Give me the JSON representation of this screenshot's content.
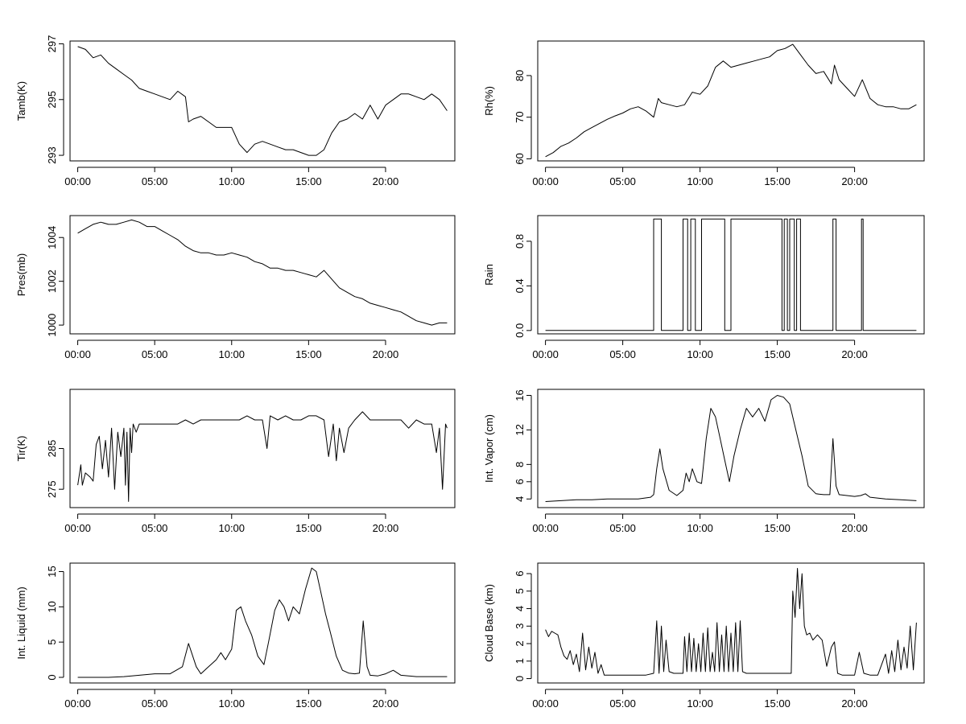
{
  "x_tick_labels": [
    "00:00",
    "05:00",
    "10:00",
    "15:00",
    "20:00"
  ],
  "chart_data": [
    {
      "type": "line",
      "ylabel": "Tamb(K)",
      "x_unit": "hours",
      "ylim": [
        292.8,
        297.1
      ],
      "yticks": [
        293,
        295,
        297
      ],
      "ytick_labels": [
        "293",
        "295",
        "297"
      ],
      "series": [
        {
          "x": [
            0,
            0.5,
            1,
            1.5,
            2,
            2.5,
            3,
            3.5,
            4,
            4.5,
            5,
            5.5,
            6,
            6.5,
            7,
            7.2,
            7.5,
            8,
            8.5,
            9,
            9.5,
            10,
            10.5,
            11,
            11.5,
            12,
            12.5,
            13,
            13.5,
            14,
            14.5,
            15,
            15.5,
            16,
            16.5,
            17,
            17.5,
            18,
            18.5,
            19,
            19.5,
            20,
            20.5,
            21,
            21.5,
            22,
            22.5,
            23,
            23.5,
            24
          ],
          "values": [
            296.9,
            296.8,
            296.5,
            296.6,
            296.3,
            296.1,
            295.9,
            295.7,
            295.4,
            295.3,
            295.2,
            295.1,
            295.0,
            295.3,
            295.1,
            294.2,
            294.3,
            294.4,
            294.2,
            294.0,
            294.0,
            294.0,
            293.4,
            293.1,
            293.4,
            293.5,
            293.4,
            293.3,
            293.2,
            293.2,
            293.1,
            293.0,
            293.0,
            293.2,
            293.8,
            294.2,
            294.3,
            294.5,
            294.3,
            294.8,
            294.3,
            294.8,
            295.0,
            295.2,
            295.2,
            295.1,
            295.0,
            295.2,
            295.0,
            294.6
          ]
        }
      ]
    },
    {
      "type": "line",
      "ylabel": "Rh(%)",
      "x_unit": "hours",
      "ylim": [
        59.5,
        88.3
      ],
      "yticks": [
        60,
        70,
        80
      ],
      "ytick_labels": [
        "60",
        "70",
        "80"
      ],
      "series": [
        {
          "x": [
            0,
            0.5,
            1,
            1.5,
            2,
            2.5,
            3,
            3.5,
            4,
            4.5,
            5,
            5.5,
            6,
            6.5,
            7,
            7.3,
            7.5,
            8,
            8.5,
            9,
            9.5,
            10,
            10.5,
            11,
            11.5,
            12,
            12.5,
            13,
            13.5,
            14,
            14.5,
            15,
            15.5,
            16,
            16.5,
            17,
            17.5,
            18,
            18.5,
            18.7,
            19,
            19.5,
            20,
            20.5,
            21,
            21.5,
            22,
            22.5,
            23,
            23.5,
            24
          ],
          "values": [
            60.5,
            61.5,
            63.0,
            63.8,
            65.0,
            66.5,
            67.5,
            68.5,
            69.5,
            70.3,
            71.0,
            72.0,
            72.5,
            71.5,
            70.0,
            74.5,
            73.5,
            73.0,
            72.5,
            73.0,
            76.0,
            75.5,
            77.5,
            82.0,
            83.5,
            82.0,
            82.5,
            83.0,
            83.5,
            84.0,
            84.5,
            86.0,
            86.5,
            87.5,
            85.0,
            82.5,
            80.5,
            81.0,
            78.0,
            82.5,
            79.0,
            77.0,
            75.0,
            79.0,
            74.5,
            73.0,
            72.5,
            72.5,
            72.0,
            72.0,
            73.0
          ]
        }
      ]
    },
    {
      "type": "line",
      "ylabel": "Pres(mb)",
      "x_unit": "hours",
      "ylim": [
        999.6,
        1005.0
      ],
      "yticks": [
        1000,
        1002,
        1004
      ],
      "ytick_labels": [
        "1000",
        "1002",
        "1004"
      ],
      "series": [
        {
          "x": [
            0,
            0.5,
            1,
            1.5,
            2,
            2.5,
            3,
            3.5,
            4,
            4.5,
            5,
            5.5,
            6,
            6.5,
            7,
            7.5,
            8,
            8.5,
            9,
            9.5,
            10,
            10.5,
            11,
            11.5,
            12,
            12.5,
            13,
            13.5,
            14,
            14.5,
            15,
            15.5,
            16,
            16.5,
            17,
            17.5,
            18,
            18.5,
            19,
            19.5,
            20,
            20.5,
            21,
            21.5,
            22,
            22.5,
            23,
            23.5,
            24
          ],
          "values": [
            1004.2,
            1004.4,
            1004.6,
            1004.7,
            1004.6,
            1004.6,
            1004.7,
            1004.8,
            1004.7,
            1004.5,
            1004.5,
            1004.3,
            1004.1,
            1003.9,
            1003.6,
            1003.4,
            1003.3,
            1003.3,
            1003.2,
            1003.2,
            1003.3,
            1003.2,
            1003.1,
            1002.9,
            1002.8,
            1002.6,
            1002.6,
            1002.5,
            1002.5,
            1002.4,
            1002.3,
            1002.2,
            1002.5,
            1002.1,
            1001.7,
            1001.5,
            1001.3,
            1001.2,
            1001.0,
            1000.9,
            1000.8,
            1000.7,
            1000.6,
            1000.4,
            1000.2,
            1000.1,
            1000.0,
            1000.1,
            1000.1
          ]
        }
      ]
    },
    {
      "type": "line",
      "ylabel": "Rain",
      "x_unit": "hours",
      "ylim": [
        -0.03,
        1.03
      ],
      "yticks": [
        0.0,
        0.4,
        0.8
      ],
      "ytick_labels": [
        "0.0",
        "0.4",
        "0.8"
      ],
      "series": [
        {
          "x": [
            0,
            7.0,
            7.0,
            7.5,
            7.5,
            8.9,
            8.9,
            9.2,
            9.2,
            9.4,
            9.4,
            9.7,
            9.7,
            10.1,
            10.1,
            11.6,
            11.6,
            12.0,
            12.0,
            15.3,
            15.3,
            15.45,
            15.45,
            15.65,
            15.65,
            15.8,
            15.8,
            16.1,
            16.1,
            16.25,
            16.25,
            16.5,
            16.5,
            18.6,
            18.6,
            18.8,
            18.8,
            20.45,
            20.45,
            20.55,
            20.55,
            24
          ],
          "values": [
            0,
            0,
            1,
            1,
            0,
            0,
            1,
            1,
            0,
            0,
            1,
            1,
            0,
            0,
            1,
            1,
            0,
            0,
            1,
            1,
            0,
            0,
            1,
            1,
            0,
            0,
            1,
            1,
            0,
            0,
            1,
            1,
            0,
            0,
            1,
            1,
            0,
            0,
            1,
            1,
            0,
            0
          ]
        }
      ]
    },
    {
      "type": "line",
      "ylabel": "Tir(K)",
      "x_unit": "hours",
      "ylim": [
        270.5,
        299.5
      ],
      "yticks": [
        275,
        285
      ],
      "ytick_labels": [
        "275",
        "285"
      ],
      "series": [
        {
          "x": [
            0,
            0.2,
            0.3,
            0.5,
            0.8,
            1.0,
            1.2,
            1.4,
            1.6,
            1.8,
            2.0,
            2.2,
            2.4,
            2.6,
            2.8,
            3.0,
            3.1,
            3.2,
            3.3,
            3.4,
            3.5,
            3.6,
            3.8,
            4.0,
            4.5,
            5,
            5.5,
            6,
            6.5,
            7,
            7.5,
            8,
            8.5,
            9,
            9.5,
            10,
            10.5,
            11,
            11.5,
            12,
            12.3,
            12.5,
            13,
            13.5,
            14,
            14.5,
            15,
            15.5,
            16,
            16.3,
            16.6,
            16.8,
            17.0,
            17.3,
            17.6,
            18,
            18.5,
            19,
            19.5,
            20,
            20.5,
            21,
            21.5,
            22,
            22.5,
            23,
            23.3,
            23.5,
            23.7,
            23.9,
            24
          ],
          "values": [
            276,
            281,
            276,
            279,
            278,
            277,
            286,
            288,
            280,
            287,
            278,
            290,
            275,
            289,
            283,
            290,
            276,
            289,
            272,
            290,
            284,
            291,
            289,
            291,
            291,
            291,
            291,
            291,
            291,
            292,
            291,
            292,
            292,
            292,
            292,
            292,
            292,
            293,
            292,
            292,
            285,
            293,
            292,
            293,
            292,
            292,
            293,
            293,
            292,
            283,
            291,
            282,
            290,
            284,
            290,
            292,
            294,
            292,
            292,
            292,
            292,
            292,
            290,
            292,
            291,
            291,
            284,
            290,
            275,
            291,
            290
          ]
        }
      ]
    },
    {
      "type": "line",
      "ylabel": "Int. Vapor (cm)",
      "x_unit": "hours",
      "ylim": [
        3.0,
        16.7
      ],
      "yticks": [
        4,
        6,
        8,
        12,
        16
      ],
      "ytick_labels": [
        "4",
        "6",
        "8",
        "12",
        "16"
      ],
      "series": [
        {
          "x": [
            0,
            1,
            2,
            3,
            4,
            5,
            6,
            6.8,
            7.0,
            7.2,
            7.4,
            7.6,
            8.0,
            8.5,
            8.9,
            9.1,
            9.3,
            9.5,
            9.8,
            10.1,
            10.4,
            10.7,
            11.0,
            11.3,
            11.6,
            11.9,
            12.2,
            12.6,
            13.0,
            13.4,
            13.8,
            14.2,
            14.6,
            15.0,
            15.4,
            15.8,
            16.2,
            16.6,
            17.0,
            17.5,
            18.0,
            18.4,
            18.6,
            18.8,
            19.0,
            19.5,
            20.0,
            20.4,
            20.7,
            21.0,
            22.0,
            23.0,
            24.0
          ],
          "values": [
            3.7,
            3.8,
            3.9,
            3.9,
            4.0,
            4.0,
            4.0,
            4.2,
            4.5,
            7.5,
            9.8,
            7.5,
            5.0,
            4.4,
            5.0,
            7.0,
            6.0,
            7.5,
            6.0,
            5.8,
            11.0,
            14.5,
            13.5,
            11.0,
            8.5,
            6.0,
            9.0,
            12.0,
            14.5,
            13.5,
            14.5,
            13.0,
            15.5,
            16.0,
            15.8,
            15.0,
            12.0,
            9.0,
            5.5,
            4.6,
            4.5,
            4.5,
            11.0,
            5.5,
            4.5,
            4.4,
            4.3,
            4.4,
            4.6,
            4.2,
            4.0,
            3.9,
            3.8
          ]
        }
      ]
    },
    {
      "type": "line",
      "ylabel": "Int. Liquid (mm)",
      "x_unit": "hours",
      "ylim": [
        -0.8,
        16.2
      ],
      "yticks": [
        0,
        5,
        10,
        15
      ],
      "ytick_labels": [
        "0",
        "5",
        "10",
        "15"
      ],
      "series": [
        {
          "x": [
            0,
            1,
            2,
            3,
            3.5,
            4,
            4.5,
            5,
            6,
            6.8,
            7.2,
            7.4,
            7.7,
            8.0,
            8.5,
            9.0,
            9.3,
            9.6,
            10.0,
            10.3,
            10.6,
            10.9,
            11.3,
            11.7,
            12.1,
            12.4,
            12.8,
            13.1,
            13.4,
            13.7,
            14.0,
            14.4,
            14.8,
            15.2,
            15.5,
            15.8,
            16.1,
            16.4,
            16.8,
            17.2,
            17.6,
            18.0,
            18.3,
            18.55,
            18.8,
            19.0,
            19.5,
            20.0,
            20.5,
            21.0,
            22.0,
            23.0,
            24.0
          ],
          "values": [
            0.0,
            0.0,
            0.0,
            0.1,
            0.2,
            0.3,
            0.4,
            0.5,
            0.5,
            1.5,
            4.8,
            3.5,
            1.5,
            0.5,
            1.5,
            2.5,
            3.5,
            2.5,
            4.0,
            9.5,
            10.0,
            8.0,
            6.0,
            3.0,
            1.8,
            5.0,
            9.5,
            11.0,
            10.0,
            8.0,
            10.0,
            9.0,
            12.5,
            15.5,
            15.0,
            12.0,
            9.0,
            6.5,
            3.0,
            1.0,
            0.6,
            0.5,
            0.6,
            8.0,
            1.5,
            0.3,
            0.2,
            0.5,
            1.0,
            0.3,
            0.1,
            0.1,
            0.1
          ]
        }
      ]
    },
    {
      "type": "line",
      "ylabel": "Cloud Base (km)",
      "x_unit": "hours",
      "ylim": [
        -0.25,
        6.6
      ],
      "yticks": [
        0,
        1,
        2,
        3,
        4,
        5,
        6
      ],
      "ytick_labels": [
        "0",
        "1",
        "2",
        "3",
        "4",
        "5",
        "6"
      ],
      "series": [
        {
          "x": [
            0,
            0.2,
            0.4,
            0.6,
            0.8,
            1.0,
            1.2,
            1.4,
            1.6,
            1.8,
            2.0,
            2.2,
            2.4,
            2.6,
            2.8,
            3.0,
            3.2,
            3.4,
            3.6,
            3.8,
            4.0,
            4.5,
            5.0,
            5.5,
            6.0,
            6.5,
            7.0,
            7.2,
            7.35,
            7.5,
            7.65,
            7.8,
            8.0,
            8.3,
            8.6,
            8.9,
            9.0,
            9.15,
            9.3,
            9.45,
            9.6,
            9.75,
            9.9,
            10.05,
            10.2,
            10.35,
            10.5,
            10.65,
            10.8,
            10.95,
            11.1,
            11.25,
            11.4,
            11.55,
            11.7,
            11.85,
            12.0,
            12.15,
            12.3,
            12.45,
            12.6,
            12.75,
            13.0,
            13.5,
            14.0,
            14.5,
            15.0,
            15.5,
            15.9,
            16.0,
            16.15,
            16.3,
            16.45,
            16.6,
            16.75,
            16.9,
            17.1,
            17.3,
            17.6,
            17.9,
            18.2,
            18.5,
            18.7,
            18.9,
            19.2,
            19.6,
            20.0,
            20.3,
            20.6,
            21.0,
            21.5,
            22.0,
            22.2,
            22.4,
            22.6,
            22.8,
            23.0,
            23.2,
            23.4,
            23.6,
            23.8,
            24.0
          ],
          "values": [
            2.8,
            2.4,
            2.7,
            2.6,
            2.5,
            1.8,
            1.3,
            1.1,
            1.6,
            0.8,
            1.4,
            0.4,
            2.6,
            0.5,
            1.8,
            0.6,
            1.5,
            0.3,
            0.8,
            0.2,
            0.2,
            0.2,
            0.2,
            0.2,
            0.2,
            0.2,
            0.3,
            3.3,
            0.3,
            3.0,
            0.4,
            2.2,
            0.4,
            0.3,
            0.3,
            0.3,
            2.4,
            0.4,
            2.6,
            0.4,
            2.3,
            0.4,
            2.0,
            0.4,
            2.6,
            0.4,
            2.9,
            0.4,
            1.5,
            0.4,
            3.2,
            0.4,
            2.5,
            0.4,
            3.0,
            0.4,
            2.6,
            0.4,
            3.2,
            0.4,
            3.3,
            0.4,
            0.3,
            0.3,
            0.3,
            0.3,
            0.3,
            0.3,
            0.3,
            5.0,
            3.5,
            6.3,
            4.0,
            6.0,
            3.0,
            2.5,
            2.6,
            2.2,
            2.5,
            2.2,
            0.7,
            1.8,
            2.1,
            0.3,
            0.2,
            0.2,
            0.2,
            1.5,
            0.3,
            0.2,
            0.2,
            1.4,
            0.3,
            1.6,
            0.4,
            2.2,
            0.5,
            1.8,
            0.6,
            3.0,
            0.5,
            3.2
          ]
        }
      ]
    }
  ]
}
